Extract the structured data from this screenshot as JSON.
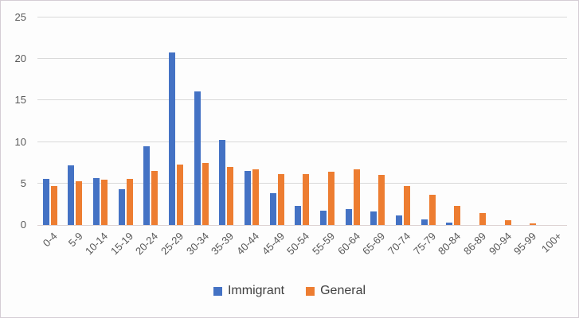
{
  "chart_data": {
    "type": "bar",
    "title": "",
    "xlabel": "",
    "ylabel": "",
    "categories": [
      "0-4",
      "5-9",
      "10-14",
      "15-19",
      "20-24",
      "25-29",
      "30-34",
      "35-39",
      "40-44",
      "45-49",
      "50-54",
      "55-59",
      "60-64",
      "65-69",
      "70-74",
      "75-79",
      "80-84",
      "86-89",
      "90-94",
      "95-99",
      "100+"
    ],
    "series": [
      {
        "name": "Immigrant",
        "color": "#4472C4",
        "values": [
          5.6,
          7.2,
          5.7,
          4.3,
          9.5,
          20.8,
          16.1,
          10.3,
          6.5,
          3.8,
          2.3,
          1.7,
          1.9,
          1.6,
          1.2,
          0.7,
          0.3,
          0,
          0,
          0,
          0
        ]
      },
      {
        "name": "General",
        "color": "#ED7D31",
        "values": [
          4.7,
          5.3,
          5.5,
          5.6,
          6.5,
          7.3,
          7.5,
          7.0,
          6.7,
          6.1,
          6.1,
          6.4,
          6.7,
          6.0,
          4.7,
          3.6,
          2.3,
          1.4,
          0.6,
          0.2,
          0
        ]
      }
    ],
    "ylim": [
      0,
      25
    ],
    "yticks": [
      0,
      5,
      10,
      15,
      20,
      25
    ],
    "grid": true,
    "gridline_color": "#d9d9d9",
    "legend_position": "bottom"
  }
}
